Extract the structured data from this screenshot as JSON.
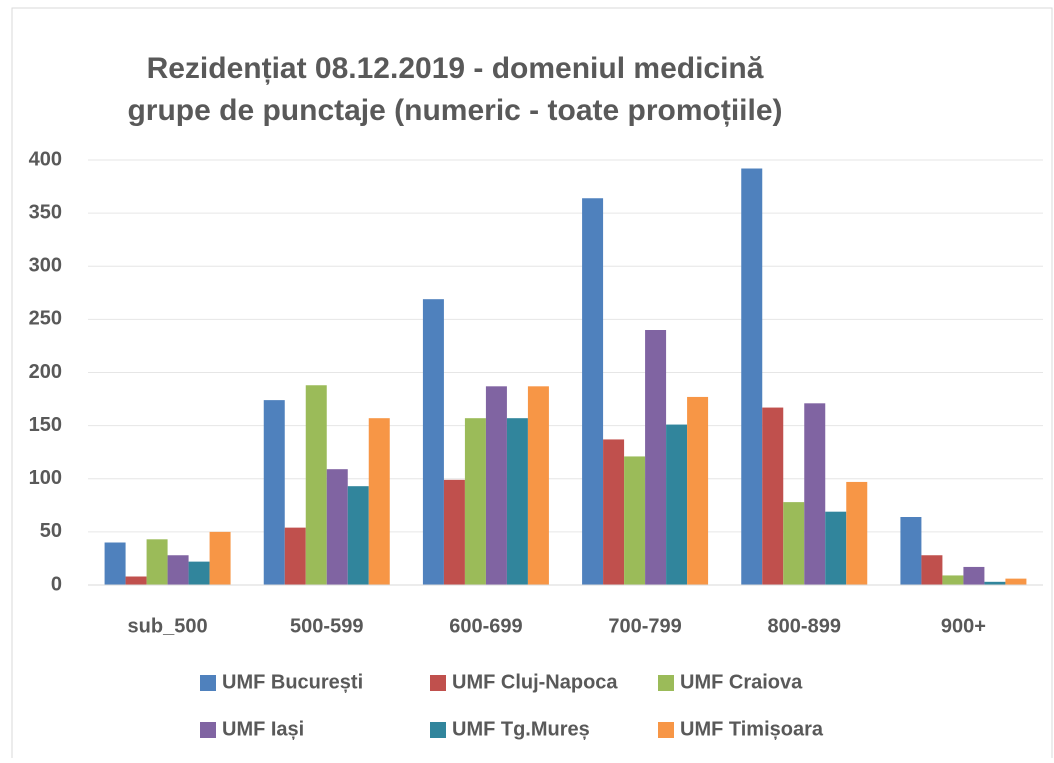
{
  "chart_data": {
    "type": "bar",
    "title": [
      "Rezidențiat 08.12.2019 - domeniul medicină",
      "grupe de punctaje (numeric - toate promoțiile)"
    ],
    "categories": [
      "sub_500",
      "500-599",
      "600-699",
      "700-799",
      "800-899",
      "900+"
    ],
    "series": [
      {
        "name": "UMF București",
        "color": "#4f81bd",
        "values": [
          40,
          174,
          269,
          364,
          392,
          64
        ]
      },
      {
        "name": "UMF Cluj-Napoca",
        "color": "#c0504d",
        "values": [
          8,
          54,
          99,
          137,
          167,
          28
        ]
      },
      {
        "name": "UMF Craiova",
        "color": "#9bbb59",
        "values": [
          43,
          188,
          157,
          121,
          78,
          9
        ]
      },
      {
        "name": "UMF Iași",
        "color": "#8064a2",
        "values": [
          28,
          109,
          187,
          240,
          171,
          17
        ]
      },
      {
        "name": "UMF Tg.Mureș",
        "color": "#31859c",
        "values": [
          22,
          93,
          157,
          151,
          69,
          3
        ]
      },
      {
        "name": "UMF Timișoara",
        "color": "#f79646",
        "values": [
          50,
          157,
          187,
          177,
          97,
          6
        ]
      }
    ],
    "ylim": [
      0,
      400
    ],
    "yticks": [
      0,
      50,
      100,
      150,
      200,
      250,
      300,
      350,
      400
    ],
    "grid": true,
    "legend": "bottom"
  }
}
